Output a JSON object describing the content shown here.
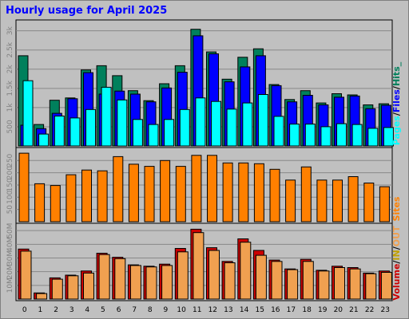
{
  "title": "Hourly usage for April 2025",
  "colors": {
    "background": "#c0c0c0",
    "title": "#0000ff",
    "hits": "#00805c",
    "files": "#0000ff",
    "pages": "#00ffff",
    "sites": "#ff8000",
    "volume_in": "#cc0000",
    "volume_out": "#f0a050"
  },
  "chart_data": [
    {
      "type": "bar",
      "panel": "hits-files-pages",
      "categories": [
        "0",
        "1",
        "2",
        "3",
        "4",
        "5",
        "6",
        "7",
        "8",
        "9",
        "10",
        "11",
        "12",
        "13",
        "14",
        "15",
        "16",
        "17",
        "18",
        "19",
        "20",
        "21",
        "22",
        "23"
      ],
      "series": [
        {
          "name": "Hits",
          "values": [
            2350,
            560,
            1190,
            1250,
            1980,
            2090,
            1830,
            1440,
            1180,
            1620,
            2090,
            3040,
            2450,
            1740,
            2310,
            2530,
            1600,
            1210,
            1440,
            1120,
            1360,
            1330,
            1070,
            1100
          ]
        },
        {
          "name": "Files",
          "values": [
            540,
            450,
            850,
            1230,
            1910,
            1350,
            1430,
            1350,
            1150,
            1510,
            1920,
            2870,
            2400,
            1670,
            2060,
            2350,
            1570,
            1150,
            1320,
            1070,
            1270,
            1300,
            970,
            1060
          ]
        },
        {
          "name": "Pages",
          "values": [
            1700,
            310,
            780,
            730,
            950,
            1530,
            1200,
            690,
            560,
            690,
            950,
            1250,
            1160,
            960,
            1120,
            1340,
            770,
            570,
            570,
            500,
            580,
            560,
            460,
            480
          ]
        }
      ],
      "ylabels": [
        "500",
        "1k",
        "1.5k",
        "2k",
        "2.5k",
        "3k"
      ],
      "legend_label": "Pages / Files / Hits_",
      "ylim": [
        0,
        3200
      ]
    },
    {
      "type": "bar",
      "panel": "sites",
      "categories": [
        "0",
        "1",
        "2",
        "3",
        "4",
        "5",
        "6",
        "7",
        "8",
        "9",
        "10",
        "11",
        "12",
        "13",
        "14",
        "15",
        "16",
        "17",
        "18",
        "19",
        "20",
        "21",
        "22",
        "23"
      ],
      "series": [
        {
          "name": "Sites",
          "values": [
            280,
            155,
            148,
            192,
            211,
            208,
            266,
            235,
            226,
            250,
            226,
            271,
            271,
            240,
            240,
            237,
            214,
            170,
            224,
            170,
            170,
            184,
            158,
            143
          ]
        }
      ],
      "ylabels": [
        "50",
        "100",
        "150",
        "200",
        "250"
      ],
      "legend_label": "Sites",
      "ylim": [
        0,
        290
      ]
    },
    {
      "type": "bar",
      "panel": "volume",
      "categories": [
        "0",
        "1",
        "2",
        "3",
        "4",
        "5",
        "6",
        "7",
        "8",
        "9",
        "10",
        "11",
        "12",
        "13",
        "14",
        "15",
        "16",
        "17",
        "18",
        "19",
        "20",
        "21",
        "22",
        "23"
      ],
      "series": [
        {
          "name": "Volume",
          "values": [
            36.5,
            4.5,
            15.5,
            17.5,
            20.5,
            33.5,
            30.5,
            25.0,
            24.0,
            25.5,
            37.0,
            51.0,
            37.5,
            27.5,
            44.0,
            35.5,
            28.5,
            22.0,
            29.0,
            21.0,
            24.0,
            23.0,
            19.0,
            20.5
          ]
        },
        {
          "name": "Volume OUT",
          "values": [
            35.0,
            4.0,
            14.5,
            17.0,
            19.0,
            32.5,
            29.5,
            24.5,
            23.5,
            24.5,
            34.5,
            48.5,
            35.5,
            26.5,
            41.5,
            32.0,
            27.5,
            21.5,
            27.5,
            20.5,
            23.0,
            22.0,
            18.5,
            19.5
          ]
        }
      ],
      "ylabels": [
        "10M",
        "20M",
        "30M",
        "40M",
        "50M"
      ],
      "legend_label": "Volume / IN / OUT",
      "ylim": [
        0,
        53
      ]
    }
  ],
  "legend": {
    "panel1": [
      "Pages",
      "/",
      "Files",
      "/",
      "Hits",
      "_"
    ],
    "panel2": [
      "Sites"
    ],
    "panel3": [
      "Volume",
      "/",
      "IN",
      "/",
      "OUT"
    ]
  }
}
